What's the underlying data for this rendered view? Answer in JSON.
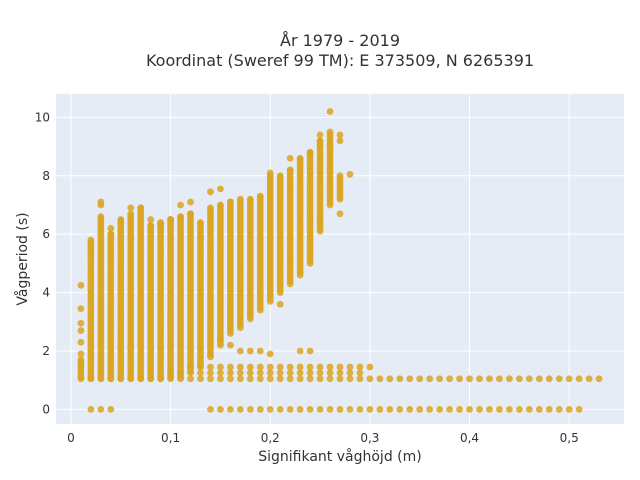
{
  "chart_data": {
    "type": "scatter",
    "title_line1": "År 1979 - 2019",
    "title_line2": "Koordinat (Sweref 99 TM): E 373509, N 6265391",
    "xlabel": "Signifikant våghöjd (m)",
    "ylabel": "Vågperiod (s)",
    "xlim": [
      -0.015,
      0.555
    ],
    "ylim": [
      -0.5,
      10.8
    ],
    "x_ticks": [
      {
        "value": 0,
        "label": "0"
      },
      {
        "value": 0.1,
        "label": "0,1"
      },
      {
        "value": 0.2,
        "label": "0,2"
      },
      {
        "value": 0.3,
        "label": "0,3"
      },
      {
        "value": 0.4,
        "label": "0,4"
      },
      {
        "value": 0.5,
        "label": "0,5"
      }
    ],
    "y_ticks": [
      {
        "value": 0,
        "label": "0"
      },
      {
        "value": 2,
        "label": "2"
      },
      {
        "value": 4,
        "label": "4"
      },
      {
        "value": 6,
        "label": "6"
      },
      {
        "value": 8,
        "label": "8"
      },
      {
        "value": 10,
        "label": "10"
      }
    ],
    "grid": true,
    "colors": {
      "points": "#daa520",
      "plot_background": "#e5ecf6",
      "grid": "#ffffff",
      "text": "#333333"
    },
    "series": [
      {
        "columns": [
          {
            "x": 0.01,
            "ymin": 1.1,
            "ymax": 1.7
          },
          {
            "x": 0.02,
            "ymin": 1.05,
            "ymax": 5.8
          },
          {
            "x": 0.03,
            "ymin": 1.05,
            "ymax": 6.6
          },
          {
            "x": 0.04,
            "ymin": 1.05,
            "ymax": 6.0
          },
          {
            "x": 0.05,
            "ymin": 1.05,
            "ymax": 6.5
          },
          {
            "x": 0.06,
            "ymin": 1.05,
            "ymax": 6.7
          },
          {
            "x": 0.07,
            "ymin": 1.05,
            "ymax": 6.9
          },
          {
            "x": 0.08,
            "ymin": 1.05,
            "ymax": 6.3
          },
          {
            "x": 0.09,
            "ymin": 1.05,
            "ymax": 6.4
          },
          {
            "x": 0.1,
            "ymin": 1.1,
            "ymax": 6.5
          },
          {
            "x": 0.11,
            "ymin": 1.1,
            "ymax": 6.6
          },
          {
            "x": 0.12,
            "ymin": 1.3,
            "ymax": 6.7
          },
          {
            "x": 0.13,
            "ymin": 1.5,
            "ymax": 6.4
          },
          {
            "x": 0.14,
            "ymin": 1.8,
            "ymax": 6.9
          },
          {
            "x": 0.15,
            "ymin": 2.2,
            "ymax": 7.0
          },
          {
            "x": 0.16,
            "ymin": 2.6,
            "ymax": 7.1
          },
          {
            "x": 0.17,
            "ymin": 2.8,
            "ymax": 7.2
          },
          {
            "x": 0.18,
            "ymin": 3.1,
            "ymax": 7.2
          },
          {
            "x": 0.19,
            "ymin": 3.4,
            "ymax": 7.3
          },
          {
            "x": 0.2,
            "ymin": 3.7,
            "ymax": 8.0
          },
          {
            "x": 0.21,
            "ymin": 4.0,
            "ymax": 8.0
          },
          {
            "x": 0.22,
            "ymin": 4.3,
            "ymax": 8.2
          },
          {
            "x": 0.23,
            "ymin": 4.6,
            "ymax": 8.6
          },
          {
            "x": 0.24,
            "ymin": 5.0,
            "ymax": 8.8
          },
          {
            "x": 0.25,
            "ymin": 6.1,
            "ymax": 9.2
          },
          {
            "x": 0.26,
            "ymin": 7.0,
            "ymax": 9.5
          },
          {
            "x": 0.27,
            "ymin": 7.2,
            "ymax": 8.0
          }
        ],
        "points": [
          {
            "x": 0.01,
            "y": 1.9
          },
          {
            "x": 0.01,
            "y": 2.3
          },
          {
            "x": 0.01,
            "y": 2.7
          },
          {
            "x": 0.01,
            "y": 2.95
          },
          {
            "x": 0.01,
            "y": 3.45
          },
          {
            "x": 0.01,
            "y": 4.25
          },
          {
            "x": 0.03,
            "y": 7.0
          },
          {
            "x": 0.03,
            "y": 7.1
          },
          {
            "x": 0.04,
            "y": 6.2
          },
          {
            "x": 0.06,
            "y": 6.9
          },
          {
            "x": 0.08,
            "y": 6.5
          },
          {
            "x": 0.09,
            "y": 6.3
          },
          {
            "x": 0.1,
            "y": 6.5
          },
          {
            "x": 0.11,
            "y": 7.0
          },
          {
            "x": 0.12,
            "y": 7.1
          },
          {
            "x": 0.13,
            "y": 5.9
          },
          {
            "x": 0.14,
            "y": 7.45
          },
          {
            "x": 0.15,
            "y": 7.55
          },
          {
            "x": 0.15,
            "y": 2.4
          },
          {
            "x": 0.16,
            "y": 2.2
          },
          {
            "x": 0.17,
            "y": 2.0
          },
          {
            "x": 0.18,
            "y": 2.0
          },
          {
            "x": 0.18,
            "y": 3.3
          },
          {
            "x": 0.19,
            "y": 2.0
          },
          {
            "x": 0.2,
            "y": 1.9
          },
          {
            "x": 0.2,
            "y": 8.1
          },
          {
            "x": 0.21,
            "y": 3.6
          },
          {
            "x": 0.22,
            "y": 8.6
          },
          {
            "x": 0.23,
            "y": 2.0
          },
          {
            "x": 0.24,
            "y": 2.0
          },
          {
            "x": 0.24,
            "y": 8.8
          },
          {
            "x": 0.25,
            "y": 6.4
          },
          {
            "x": 0.25,
            "y": 9.4
          },
          {
            "x": 0.26,
            "y": 10.2
          },
          {
            "x": 0.26,
            "y": 9.0
          },
          {
            "x": 0.27,
            "y": 9.2
          },
          {
            "x": 0.27,
            "y": 9.4
          },
          {
            "x": 0.27,
            "y": 6.7
          },
          {
            "x": 0.28,
            "y": 8.05
          }
        ],
        "bands": [
          {
            "y": 1.05,
            "x_from": 0.01,
            "x_to": 0.53,
            "step": 0.01
          },
          {
            "y": 1.25,
            "x_from": 0.1,
            "x_to": 0.29,
            "step": 0.01
          },
          {
            "y": 1.45,
            "x_from": 0.12,
            "x_to": 0.3,
            "step": 0.01
          },
          {
            "y": 0.0,
            "x_from": 0.02,
            "x_to": 0.04,
            "step": 0.01
          },
          {
            "y": 0.0,
            "x_from": 0.14,
            "x_to": 0.51,
            "step": 0.01
          }
        ]
      }
    ]
  }
}
